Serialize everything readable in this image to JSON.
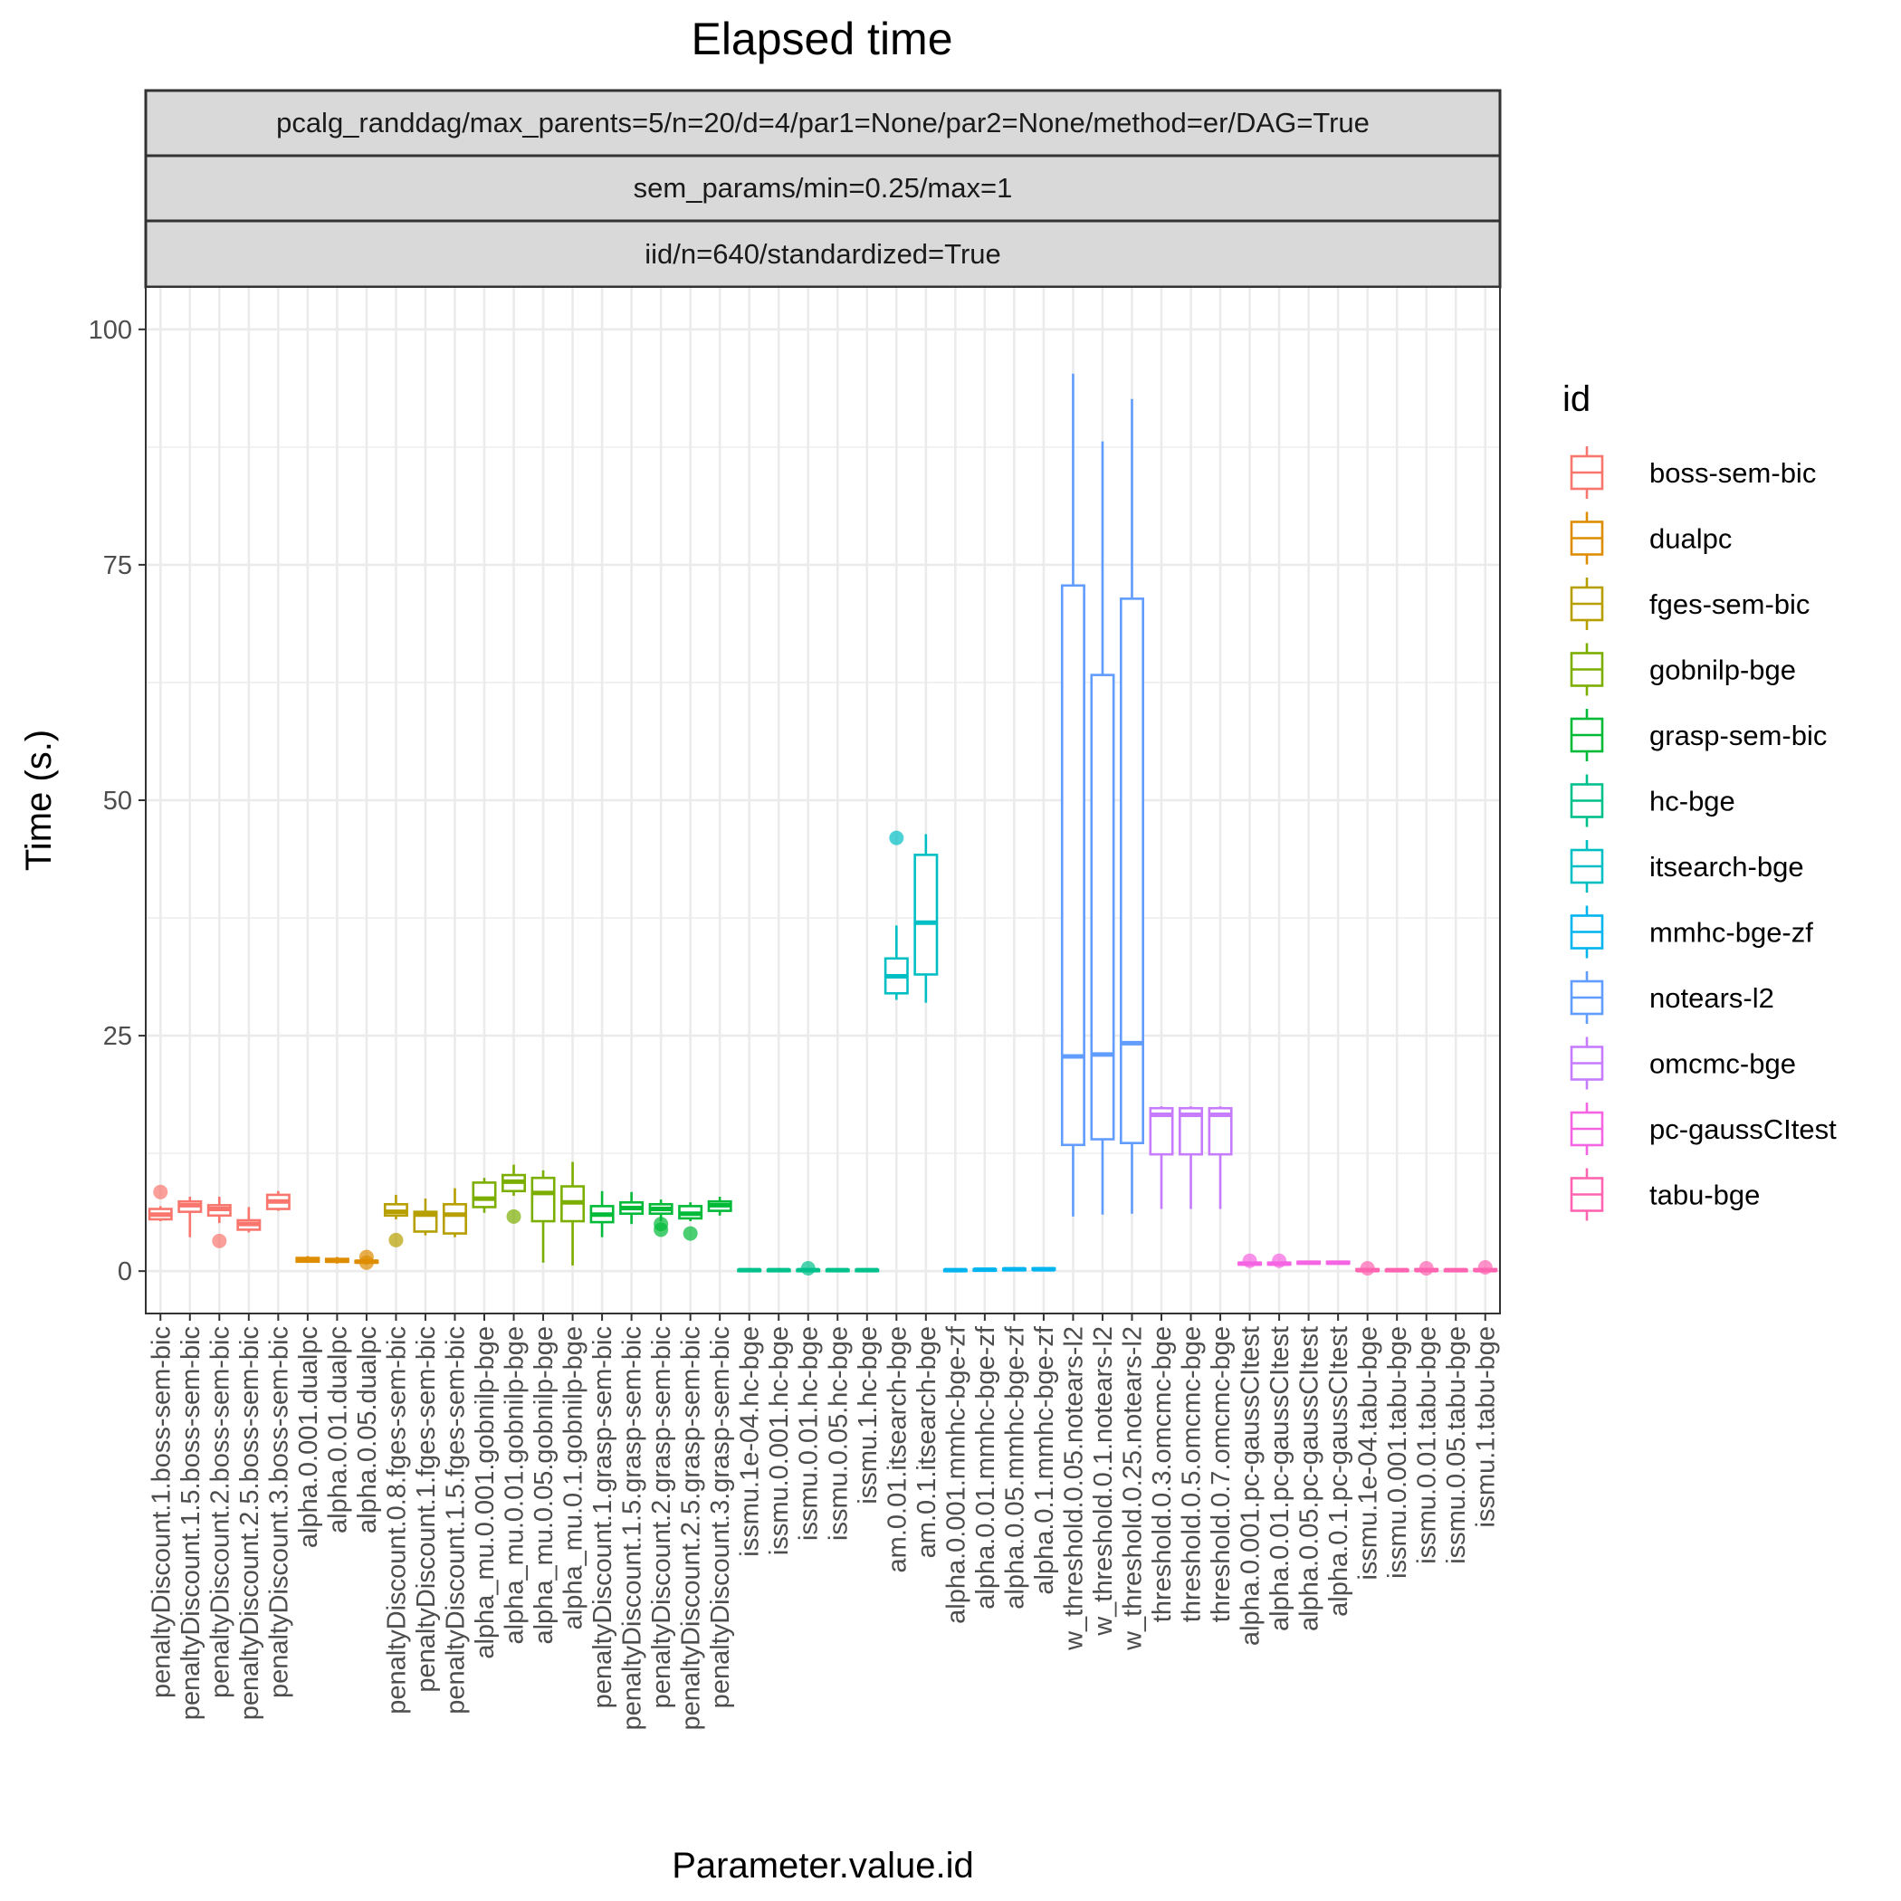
{
  "chart_data": {
    "type": "boxplot",
    "title": "Elapsed time",
    "xlabel": "Parameter.value.id",
    "ylabel": "Time (s.)",
    "ylim": [
      -4.5,
      104.5
    ],
    "yticks": [
      0,
      25,
      50,
      75,
      100
    ],
    "strips": [
      "pcalg_randdag/max_parents=5/n=20/d=4/par1=None/par2=None/method=er/DAG=True",
      "sem_params/min=0.25/max=1",
      "iid/n=640/standardized=True"
    ],
    "legend": {
      "title": "id",
      "entries": [
        {
          "label": "boss-sem-bic",
          "color": "#F8766D"
        },
        {
          "label": "dualpc",
          "color": "#DE8C00"
        },
        {
          "label": "fges-sem-bic",
          "color": "#B79F00"
        },
        {
          "label": "gobnilp-bge",
          "color": "#7CAE00"
        },
        {
          "label": "grasp-sem-bic",
          "color": "#00BA38"
        },
        {
          "label": "hc-bge",
          "color": "#00C08B"
        },
        {
          "label": "itsearch-bge",
          "color": "#00BFC4"
        },
        {
          "label": "mmhc-bge-zf",
          "color": "#00B4F0"
        },
        {
          "label": "notears-l2",
          "color": "#619CFF"
        },
        {
          "label": "omcmc-bge",
          "color": "#C77CFF"
        },
        {
          "label": "pc-gaussCItest",
          "color": "#F564E3"
        },
        {
          "label": "tabu-bge",
          "color": "#FF64B0"
        }
      ]
    },
    "boxes": [
      {
        "label": "penaltyDiscount.1.boss-sem-bic",
        "id": 0,
        "stats": [
          5.3,
          5.5,
          6.0,
          6.6,
          6.9
        ],
        "outliers": [
          8.4
        ]
      },
      {
        "label": "penaltyDiscount.1.5.boss-sem-bic",
        "id": 0,
        "stats": [
          3.6,
          6.3,
          7.0,
          7.4,
          7.9
        ],
        "outliers": []
      },
      {
        "label": "penaltyDiscount.2.boss-sem-bic",
        "id": 0,
        "stats": [
          5.1,
          5.9,
          6.6,
          7.0,
          7.9
        ],
        "outliers": [
          3.2
        ]
      },
      {
        "label": "penaltyDiscount.2.5.boss-sem-bic",
        "id": 0,
        "stats": [
          4.1,
          4.4,
          5.0,
          5.4,
          6.8
        ],
        "outliers": []
      },
      {
        "label": "penaltyDiscount.3.boss-sem-bic",
        "id": 0,
        "stats": [
          6.4,
          6.6,
          7.4,
          8.1,
          8.5
        ],
        "outliers": []
      },
      {
        "label": "alpha.0.001.dualpc",
        "id": 1,
        "stats": [
          0.9,
          1.0,
          1.2,
          1.4,
          1.6
        ],
        "outliers": []
      },
      {
        "label": "alpha.0.01.dualpc",
        "id": 1,
        "stats": [
          0.8,
          1.0,
          1.1,
          1.3,
          1.5
        ],
        "outliers": []
      },
      {
        "label": "alpha.0.05.dualpc",
        "id": 1,
        "stats": [
          0.7,
          0.9,
          1.0,
          1.1,
          1.3
        ],
        "outliers": [
          1.5,
          0.9
        ]
      },
      {
        "label": "penaltyDiscount.0.8.fges-sem-bic",
        "id": 2,
        "stats": [
          5.5,
          5.9,
          6.3,
          7.1,
          8.1
        ],
        "outliers": [
          3.3
        ]
      },
      {
        "label": "penaltyDiscount.1.fges-sem-bic",
        "id": 2,
        "stats": [
          3.8,
          4.2,
          6.0,
          6.3,
          7.7
        ],
        "outliers": []
      },
      {
        "label": "penaltyDiscount.1.5.fges-sem-bic",
        "id": 2,
        "stats": [
          3.6,
          4.0,
          6.0,
          7.1,
          8.8
        ],
        "outliers": []
      },
      {
        "label": "alpha_mu.0.001.gobnilp-bge",
        "id": 3,
        "stats": [
          6.2,
          6.8,
          7.7,
          9.4,
          9.9
        ],
        "outliers": []
      },
      {
        "label": "alpha_mu.0.01.gobnilp-bge",
        "id": 3,
        "stats": [
          8.0,
          8.5,
          9.5,
          10.2,
          11.3
        ],
        "outliers": [
          5.8
        ]
      },
      {
        "label": "alpha_mu.0.05.gobnilp-bge",
        "id": 3,
        "stats": [
          0.9,
          5.3,
          8.3,
          9.9,
          10.7
        ],
        "outliers": []
      },
      {
        "label": "alpha_mu.0.1.gobnilp-bge",
        "id": 3,
        "stats": [
          0.6,
          5.3,
          7.3,
          9.0,
          11.6
        ],
        "outliers": []
      },
      {
        "label": "penaltyDiscount.1.grasp-sem-bic",
        "id": 4,
        "stats": [
          3.6,
          5.2,
          6.0,
          6.9,
          8.5
        ],
        "outliers": []
      },
      {
        "label": "penaltyDiscount.1.5.grasp-sem-bic",
        "id": 4,
        "stats": [
          5.0,
          6.1,
          6.7,
          7.3,
          8.4
        ],
        "outliers": []
      },
      {
        "label": "penaltyDiscount.2.grasp-sem-bic",
        "id": 4,
        "stats": [
          5.3,
          6.1,
          6.6,
          7.1,
          7.6
        ],
        "outliers": [
          5.0,
          4.4
        ]
      },
      {
        "label": "penaltyDiscount.2.5.grasp-sem-bic",
        "id": 4,
        "stats": [
          5.3,
          5.6,
          6.1,
          6.9,
          7.3
        ],
        "outliers": [
          4.0
        ]
      },
      {
        "label": "penaltyDiscount.3.grasp-sem-bic",
        "id": 4,
        "stats": [
          5.9,
          6.4,
          7.0,
          7.4,
          7.9
        ],
        "outliers": []
      },
      {
        "label": "issmu.1e-04.hc-bge",
        "id": 5,
        "stats": [
          0.0,
          0.05,
          0.1,
          0.15,
          0.2
        ],
        "outliers": []
      },
      {
        "label": "issmu.0.001.hc-bge",
        "id": 5,
        "stats": [
          0.0,
          0.05,
          0.1,
          0.15,
          0.2
        ],
        "outliers": []
      },
      {
        "label": "issmu.0.01.hc-bge",
        "id": 5,
        "stats": [
          0.0,
          0.05,
          0.1,
          0.15,
          0.2
        ],
        "outliers": [
          0.3
        ]
      },
      {
        "label": "issmu.0.05.hc-bge",
        "id": 5,
        "stats": [
          0.0,
          0.05,
          0.1,
          0.15,
          0.2
        ],
        "outliers": []
      },
      {
        "label": "issmu.1.hc-bge",
        "id": 5,
        "stats": [
          0.0,
          0.05,
          0.1,
          0.15,
          0.2
        ],
        "outliers": []
      },
      {
        "label": "am.0.01.itsearch-bge",
        "id": 6,
        "stats": [
          28.8,
          29.5,
          31.3,
          33.2,
          36.7
        ],
        "outliers": [
          46.0
        ]
      },
      {
        "label": "am.0.1.itsearch-bge",
        "id": 6,
        "stats": [
          28.5,
          31.5,
          37.0,
          44.2,
          46.4
        ],
        "outliers": []
      },
      {
        "label": "alpha.0.001.mmhc-bge-zf",
        "id": 7,
        "stats": [
          0.0,
          0.05,
          0.1,
          0.15,
          0.2
        ],
        "outliers": []
      },
      {
        "label": "alpha.0.01.mmhc-bge-zf",
        "id": 7,
        "stats": [
          0.05,
          0.1,
          0.15,
          0.2,
          0.25
        ],
        "outliers": []
      },
      {
        "label": "alpha.0.05.mmhc-bge-zf",
        "id": 7,
        "stats": [
          0.1,
          0.15,
          0.2,
          0.25,
          0.3
        ],
        "outliers": []
      },
      {
        "label": "alpha.0.1.mmhc-bge-zf",
        "id": 7,
        "stats": [
          0.1,
          0.15,
          0.2,
          0.3,
          0.35
        ],
        "outliers": []
      },
      {
        "label": "w_threshold.0.05.notears-l2",
        "id": 8,
        "stats": [
          5.8,
          13.4,
          22.8,
          72.8,
          95.3
        ],
        "outliers": []
      },
      {
        "label": "w_threshold.0.1.notears-l2",
        "id": 8,
        "stats": [
          6.0,
          14.0,
          23.0,
          63.3,
          88.1
        ],
        "outliers": []
      },
      {
        "label": "w_threshold.0.25.notears-l2",
        "id": 8,
        "stats": [
          6.1,
          13.6,
          24.2,
          71.4,
          92.6
        ],
        "outliers": []
      },
      {
        "label": "threshold.0.3.omcmc-bge",
        "id": 9,
        "stats": [
          6.6,
          12.4,
          16.6,
          17.3,
          17.5
        ],
        "outliers": []
      },
      {
        "label": "threshold.0.5.omcmc-bge",
        "id": 9,
        "stats": [
          6.6,
          12.4,
          16.6,
          17.3,
          17.5
        ],
        "outliers": []
      },
      {
        "label": "threshold.0.7.omcmc-bge",
        "id": 9,
        "stats": [
          6.6,
          12.4,
          16.6,
          17.3,
          17.5
        ],
        "outliers": []
      },
      {
        "label": "alpha.0.001.pc-gaussCItest",
        "id": 10,
        "stats": [
          0.6,
          0.7,
          0.8,
          0.9,
          1.0
        ],
        "outliers": [
          1.1
        ]
      },
      {
        "label": "alpha.0.01.pc-gaussCItest",
        "id": 10,
        "stats": [
          0.6,
          0.7,
          0.8,
          0.9,
          1.0
        ],
        "outliers": [
          1.1
        ]
      },
      {
        "label": "alpha.0.05.pc-gaussCItest",
        "id": 10,
        "stats": [
          0.7,
          0.8,
          0.9,
          1.0,
          1.1
        ],
        "outliers": []
      },
      {
        "label": "alpha.0.1.pc-gaussCItest",
        "id": 10,
        "stats": [
          0.7,
          0.8,
          0.9,
          1.0,
          1.1
        ],
        "outliers": []
      },
      {
        "label": "issmu.1e-04.tabu-bge",
        "id": 11,
        "stats": [
          0.0,
          0.05,
          0.1,
          0.2,
          0.3
        ],
        "outliers": [
          0.3
        ]
      },
      {
        "label": "issmu.0.001.tabu-bge",
        "id": 11,
        "stats": [
          0.0,
          0.05,
          0.1,
          0.15,
          0.2
        ],
        "outliers": []
      },
      {
        "label": "issmu.0.01.tabu-bge",
        "id": 11,
        "stats": [
          0.0,
          0.05,
          0.1,
          0.2,
          0.3
        ],
        "outliers": [
          0.3
        ]
      },
      {
        "label": "issmu.0.05.tabu-bge",
        "id": 11,
        "stats": [
          0.0,
          0.05,
          0.1,
          0.15,
          0.2
        ],
        "outliers": []
      },
      {
        "label": "issmu.1.tabu-bge",
        "id": 11,
        "stats": [
          0.0,
          0.05,
          0.1,
          0.2,
          0.3
        ],
        "outliers": [
          0.4
        ]
      }
    ]
  }
}
